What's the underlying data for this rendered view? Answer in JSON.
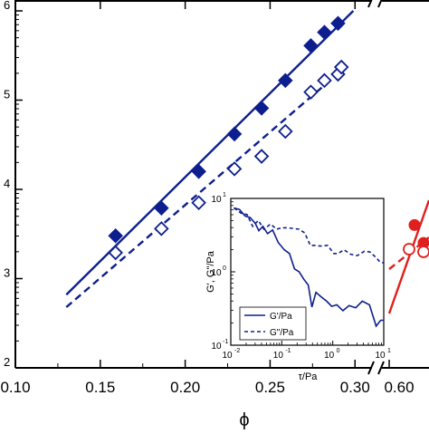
{
  "chart_data": [
    {
      "type": "scatter",
      "x_axis_label": "ϕ",
      "y_axis_scale": "log",
      "x_ticks_left": [
        "0.10",
        "0.15",
        "0.20",
        "0.25",
        "0.30"
      ],
      "x_ticks_right": [
        "0.60"
      ],
      "y_ticks_exponents": [
        "6",
        "5",
        "4",
        "3",
        "2"
      ],
      "xlim_left": [
        0.1,
        0.31
      ],
      "ylim_log": [
        2,
        6
      ],
      "axis_break": "//",
      "colors": {
        "blue": "#0d1f8e",
        "red": "#e01f1f"
      },
      "series": [
        {
          "marker": "filled-diamond",
          "color": "blue",
          "x": [
            0.159,
            0.186,
            0.208,
            0.229,
            0.245,
            0.259,
            0.274,
            0.282,
            0.29
          ],
          "logy": [
            3.48,
            3.79,
            4.2,
            4.62,
            4.91,
            5.22,
            5.61,
            5.76,
            5.86
          ]
        },
        {
          "marker": "open-diamond",
          "color": "blue",
          "x": [
            0.159,
            0.186,
            0.208,
            0.229,
            0.245,
            0.259,
            0.274,
            0.282,
            0.29,
            0.292
          ],
          "logy": [
            3.29,
            3.56,
            3.85,
            4.23,
            4.37,
            4.65,
            5.09,
            5.22,
            5.29,
            5.37
          ]
        },
        {
          "line": "solid",
          "color": "blue",
          "x": [
            0.13,
            0.299
          ],
          "logy": [
            2.82,
            6.0
          ]
        },
        {
          "line": "dashed",
          "color": "blue",
          "x": [
            0.13,
            0.292
          ],
          "logy": [
            2.68,
            5.33
          ]
        }
      ],
      "broken_segment": {
        "color": "red",
        "filled_circles_logy": [
          3.6,
          3.4
        ],
        "open_circles_logy": [
          3.33,
          3.3
        ]
      }
    },
    {
      "type": "line",
      "inset": true,
      "x_scale": "log",
      "y_scale": "log",
      "xlabel": "τ/Pa",
      "ylabel": "G', G\"/Pa",
      "x_ticks": [
        "10",
        "10",
        "10",
        "10",
        "10"
      ],
      "x_ticks_exp": [
        "-2",
        "-1",
        "0",
        "1",
        ""
      ],
      "y_ticks": [
        "10",
        "10",
        "10"
      ],
      "y_ticks_exp": [
        "1",
        "0",
        "-1"
      ],
      "xlim_log": [
        -2,
        1
      ],
      "ylim_log": [
        -1,
        1
      ],
      "legend": [
        {
          "label": "G'/Pa",
          "style": "solid"
        },
        {
          "label": "G\"/Pa",
          "style": "dashed"
        }
      ],
      "series": [
        {
          "name": "G'/Pa",
          "style": "solid",
          "logx": [
            -1.94,
            -1.83,
            -1.72,
            -1.62,
            -1.52,
            -1.45,
            -1.37,
            -1.28,
            -1.18,
            -1.07,
            -0.95,
            -0.85,
            -0.75,
            -0.66,
            -0.57,
            -0.48,
            -0.41,
            -0.33,
            -0.23,
            -0.12,
            -0.02,
            0.08,
            0.2,
            0.32,
            0.45,
            0.58,
            0.72,
            0.85,
            0.94,
            1.0
          ],
          "logy": [
            0.87,
            0.85,
            0.76,
            0.74,
            0.66,
            0.56,
            0.62,
            0.52,
            0.57,
            0.4,
            0.3,
            0.25,
            0.04,
            0.0,
            -0.1,
            -0.18,
            -0.48,
            -0.28,
            -0.34,
            -0.4,
            -0.47,
            -0.45,
            -0.53,
            -0.46,
            -0.49,
            -0.4,
            -0.45,
            -0.74,
            -0.66,
            -0.66
          ]
        },
        {
          "name": "G\"/Pa",
          "style": "dashed",
          "logx": [
            -1.94,
            -1.8,
            -1.68,
            -1.57,
            -1.46,
            -1.35,
            -1.22,
            -1.1,
            -1.0,
            -0.88,
            -0.77,
            -0.66,
            -0.55,
            -0.44,
            -0.35,
            -0.24,
            -0.1,
            0.02,
            0.1,
            0.22,
            0.35,
            0.48,
            0.62,
            0.73,
            0.84,
            0.92,
            1.0
          ],
          "logy": [
            0.87,
            0.8,
            0.78,
            0.62,
            0.7,
            0.58,
            0.65,
            0.58,
            0.6,
            0.6,
            0.59,
            0.58,
            0.53,
            0.36,
            0.36,
            0.35,
            0.36,
            0.25,
            0.25,
            0.3,
            0.24,
            0.22,
            0.28,
            0.27,
            0.2,
            0.14,
            0.12
          ]
        }
      ]
    }
  ]
}
